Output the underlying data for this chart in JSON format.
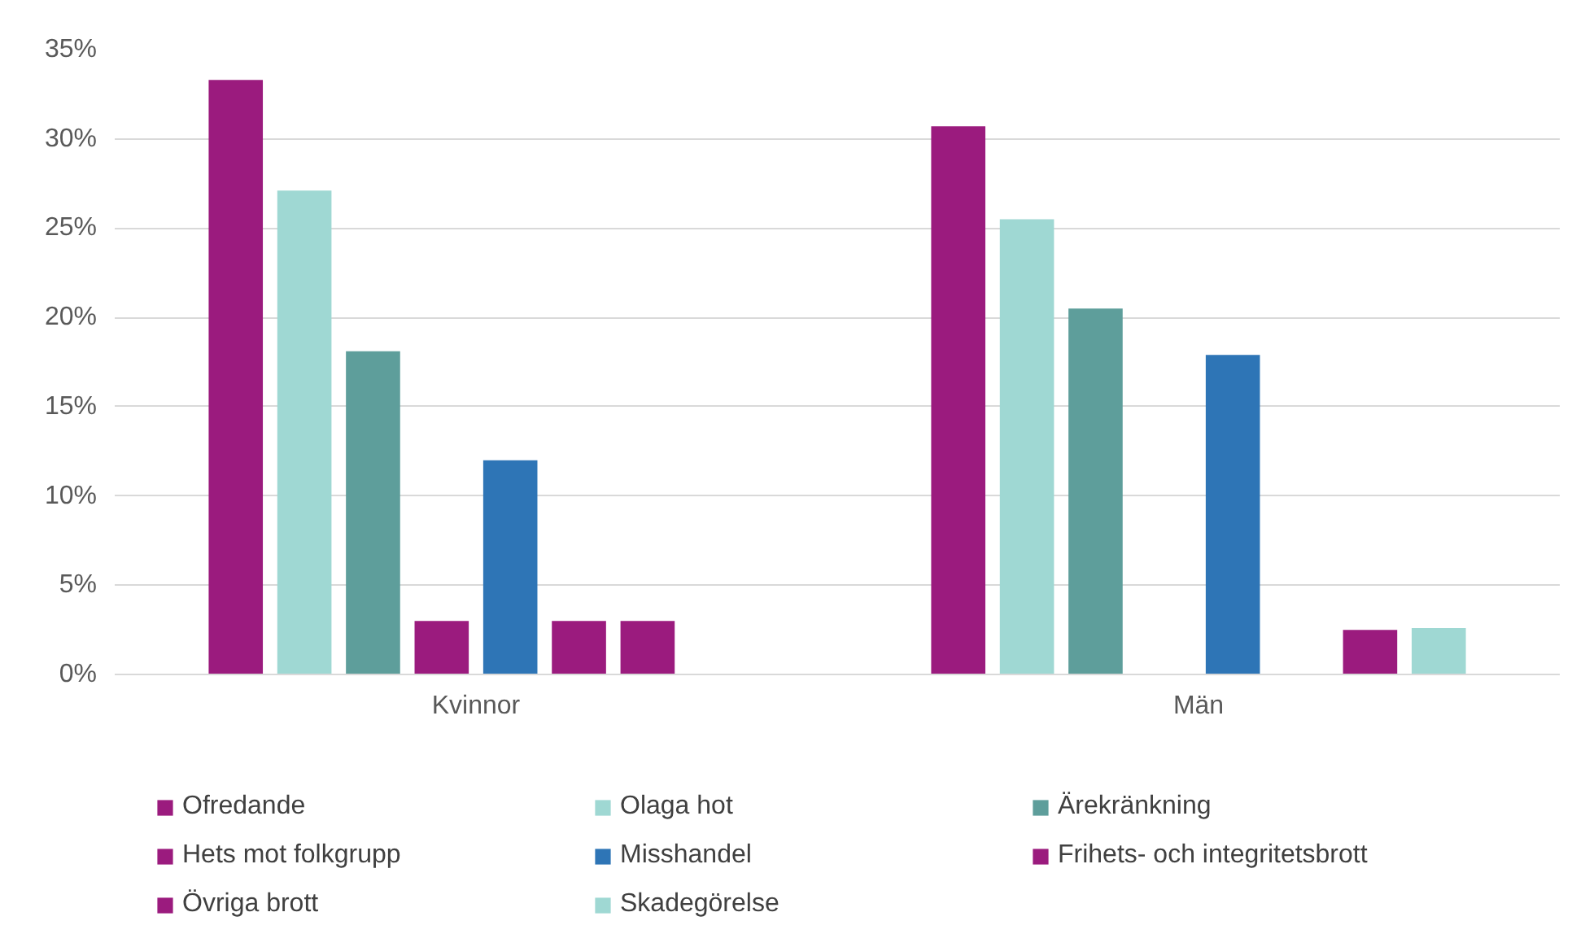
{
  "chart_data": {
    "type": "bar",
    "categories": [
      "Kvinnor",
      "Män"
    ],
    "series": [
      {
        "name": "Ofredande",
        "color": "#9b1b7e",
        "values": [
          33.3,
          30.7
        ]
      },
      {
        "name": "Olaga hot",
        "color": "#9fd8d3",
        "values": [
          27.1,
          25.5
        ]
      },
      {
        "name": "Ärekränkning",
        "color": "#5e9e9b",
        "values": [
          18.1,
          20.5
        ]
      },
      {
        "name": "Hets mot folkgrupp",
        "color": "#9b1b7e",
        "values": [
          3.0,
          null
        ]
      },
      {
        "name": "Misshandel",
        "color": "#2e75b6",
        "values": [
          12.0,
          17.9
        ]
      },
      {
        "name": "Frihets- och integritetsbrott",
        "color": "#9b1b7e",
        "values": [
          3.0,
          null
        ]
      },
      {
        "name": "Övriga brott",
        "color": "#9b1b7e",
        "values": [
          3.0,
          2.5
        ]
      },
      {
        "name": "Skadegörelse",
        "color": "#9fd8d3",
        "values": [
          null,
          2.6
        ]
      }
    ],
    "ylim": [
      0,
      35
    ],
    "yticks": [
      {
        "value": 0,
        "label": "0%"
      },
      {
        "value": 5,
        "label": "5%"
      },
      {
        "value": 10,
        "label": "10%"
      },
      {
        "value": 15,
        "label": "15%"
      },
      {
        "value": 20,
        "label": "20%"
      },
      {
        "value": 25,
        "label": "25%"
      },
      {
        "value": 30,
        "label": "30%"
      },
      {
        "value": 35,
        "label": "35%"
      }
    ],
    "grid": "y",
    "legend": "bottom"
  }
}
